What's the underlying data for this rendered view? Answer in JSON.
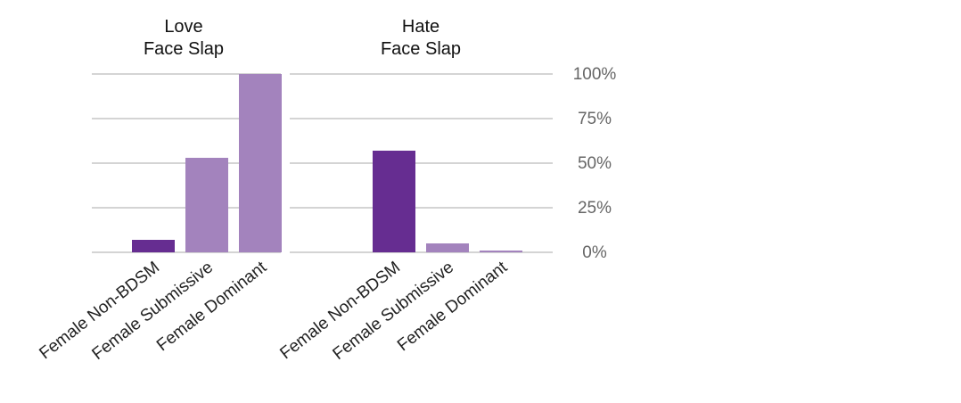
{
  "chart_data": {
    "type": "bar",
    "groups": [
      {
        "title": "Love\nFace Slap",
        "values": [
          7,
          53,
          100
        ]
      },
      {
        "title": "Hate\nFace Slap",
        "values": [
          57,
          5,
          1
        ]
      }
    ],
    "categories": [
      "Female Non-BDSM",
      "Female Submissive",
      "Female Dominant"
    ],
    "colors": [
      "#662d91",
      "#a383bd",
      "#a383bd"
    ],
    "ylim": [
      0,
      100
    ],
    "yticks": [
      {
        "value": 0,
        "label": "0%"
      },
      {
        "value": 25,
        "label": "25%"
      },
      {
        "value": 50,
        "label": "50%"
      },
      {
        "value": 75,
        "label": "75%"
      },
      {
        "value": 100,
        "label": "100%"
      }
    ],
    "grid": true
  }
}
